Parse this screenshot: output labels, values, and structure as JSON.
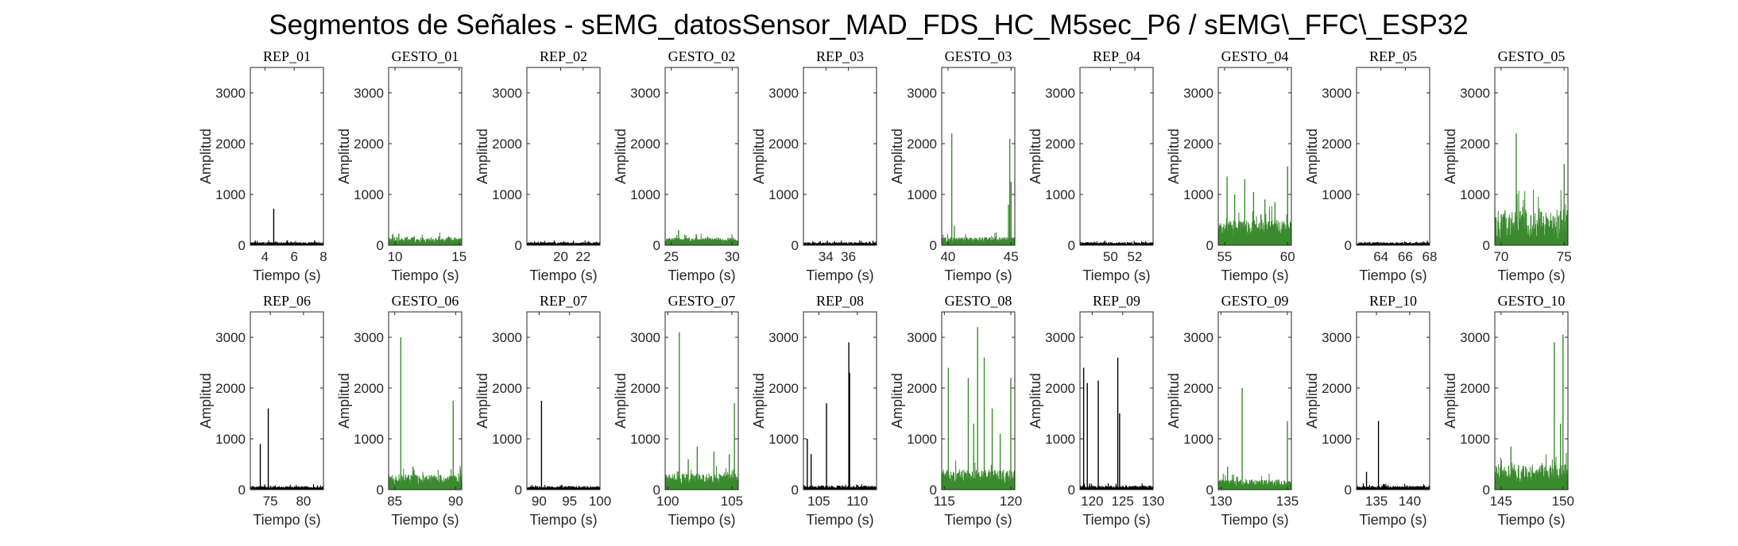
{
  "figure": {
    "title": "Segmentos de Señales - sEMG_datosSensor_MAD_FDS_HC_M5sec_P6 / sEMG\\_FFC\\_ESP32"
  },
  "colors": {
    "rep": "#000000",
    "gesto": "#3a8a2e",
    "axis": "#262626"
  },
  "chart_data": [
    {
      "type": "line",
      "title": "REP_01",
      "xlabel": "Tiempo (s)",
      "ylabel": "Amplitud",
      "xlim": [
        3,
        8
      ],
      "ylim": [
        0,
        3500
      ],
      "xticks": [
        4,
        6,
        8
      ],
      "yticks": [
        0,
        1000,
        2000,
        3000
      ],
      "color": "rep",
      "series": [
        {
          "base": [
            20,
            60
          ],
          "spikes": [
            [
              4.6,
              720
            ]
          ]
        }
      ]
    },
    {
      "type": "line",
      "title": "GESTO_01",
      "xlabel": "Tiempo (s)",
      "ylabel": "Amplitud",
      "xlim": [
        9.5,
        15.2
      ],
      "ylim": [
        0,
        3500
      ],
      "xticks": [
        10,
        15
      ],
      "yticks": [
        0,
        1000,
        2000,
        3000
      ],
      "color": "gesto",
      "series": [
        {
          "base": [
            40,
            160
          ],
          "spikes": [
            [
              10.3,
              230
            ],
            [
              11.5,
              180
            ],
            [
              13.4,
              170
            ]
          ]
        }
      ]
    },
    {
      "type": "line",
      "title": "REP_02",
      "xlabel": "Tiempo (s)",
      "ylabel": "Amplitud",
      "xlim": [
        17,
        23.5
      ],
      "ylim": [
        0,
        3500
      ],
      "xticks": [
        20,
        22
      ],
      "yticks": [
        0,
        1000,
        2000,
        3000
      ],
      "color": "rep",
      "series": [
        {
          "base": [
            20,
            60
          ],
          "spikes": []
        }
      ]
    },
    {
      "type": "line",
      "title": "GESTO_02",
      "xlabel": "Tiempo (s)",
      "ylabel": "Amplitud",
      "xlim": [
        24.5,
        30.5
      ],
      "ylim": [
        0,
        3500
      ],
      "xticks": [
        25,
        30
      ],
      "yticks": [
        0,
        1000,
        2000,
        3000
      ],
      "color": "gesto",
      "series": [
        {
          "base": [
            60,
            150
          ],
          "spikes": [
            [
              25.6,
              300
            ],
            [
              26.2,
              200
            ],
            [
              28.0,
              170
            ]
          ]
        }
      ]
    },
    {
      "type": "line",
      "title": "REP_03",
      "xlabel": "Tiempo (s)",
      "ylabel": "Amplitud",
      "xlim": [
        32,
        38.5
      ],
      "ylim": [
        0,
        3500
      ],
      "xticks": [
        34,
        36
      ],
      "yticks": [
        0,
        1000,
        2000,
        3000
      ],
      "color": "rep",
      "series": [
        {
          "base": [
            20,
            60
          ],
          "spikes": []
        }
      ]
    },
    {
      "type": "line",
      "title": "GESTO_03",
      "xlabel": "Tiempo (s)",
      "ylabel": "Amplitud",
      "xlim": [
        39.5,
        45.3
      ],
      "ylim": [
        0,
        3500
      ],
      "xticks": [
        40,
        45
      ],
      "yticks": [
        0,
        1000,
        2000,
        3000
      ],
      "color": "gesto",
      "series": [
        {
          "base": [
            60,
            160
          ],
          "spikes": [
            [
              40.3,
              2200
            ],
            [
              40.5,
              380
            ],
            [
              44.9,
              2100
            ],
            [
              45.0,
              1250
            ],
            [
              44.8,
              800
            ]
          ]
        }
      ]
    },
    {
      "type": "line",
      "title": "REP_04",
      "xlabel": "Tiempo (s)",
      "ylabel": "Amplitud",
      "xlim": [
        47.5,
        53.5
      ],
      "ylim": [
        0,
        3500
      ],
      "xticks": [
        50,
        52
      ],
      "yticks": [
        0,
        1000,
        2000,
        3000
      ],
      "color": "rep",
      "series": [
        {
          "base": [
            20,
            60
          ],
          "spikes": []
        }
      ]
    },
    {
      "type": "line",
      "title": "GESTO_04",
      "xlabel": "Tiempo (s)",
      "ylabel": "Amplitud",
      "xlim": [
        54.5,
        60.3
      ],
      "ylim": [
        0,
        3500
      ],
      "xticks": [
        55,
        60
      ],
      "yticks": [
        0,
        1000,
        2000,
        3000
      ],
      "color": "gesto",
      "series": [
        {
          "base": [
            150,
            500
          ],
          "spikes": [
            [
              55.2,
              1350
            ],
            [
              55.8,
              1000
            ],
            [
              56.6,
              1300
            ],
            [
              57.3,
              1050
            ],
            [
              58.2,
              900
            ],
            [
              59.0,
              850
            ],
            [
              60.0,
              1550
            ]
          ]
        }
      ]
    },
    {
      "type": "line",
      "title": "REP_05",
      "xlabel": "Tiempo (s)",
      "ylabel": "Amplitud",
      "xlim": [
        62,
        68
      ],
      "ylim": [
        0,
        3500
      ],
      "xticks": [
        64,
        66,
        68
      ],
      "yticks": [
        0,
        1000,
        2000,
        3000
      ],
      "color": "rep",
      "series": [
        {
          "base": [
            20,
            60
          ],
          "spikes": []
        }
      ]
    },
    {
      "type": "line",
      "title": "GESTO_05",
      "xlabel": "Tiempo (s)",
      "ylabel": "Amplitud",
      "xlim": [
        69.5,
        75.3
      ],
      "ylim": [
        0,
        3500
      ],
      "xticks": [
        70,
        75
      ],
      "yticks": [
        0,
        1000,
        2000,
        3000
      ],
      "color": "gesto",
      "series": [
        {
          "base": [
            60,
            700
          ],
          "spikes": [
            [
              71.2,
              2200
            ],
            [
              75.0,
              1600
            ]
          ]
        }
      ]
    },
    {
      "type": "line",
      "title": "REP_06",
      "xlabel": "Tiempo (s)",
      "ylabel": "Amplitud",
      "xlim": [
        72,
        83
      ],
      "ylim": [
        0,
        3500
      ],
      "xticks": [
        75,
        80
      ],
      "yticks": [
        0,
        1000,
        2000,
        3000
      ],
      "color": "rep",
      "series": [
        {
          "base": [
            20,
            70
          ],
          "spikes": [
            [
              74.7,
              1600
            ],
            [
              73.5,
              900
            ]
          ]
        }
      ]
    },
    {
      "type": "line",
      "title": "GESTO_06",
      "xlabel": "Tiempo (s)",
      "ylabel": "Amplitud",
      "xlim": [
        84.5,
        90.5
      ],
      "ylim": [
        0,
        3500
      ],
      "xticks": [
        85,
        90
      ],
      "yticks": [
        0,
        1000,
        2000,
        3000
      ],
      "color": "gesto",
      "series": [
        {
          "base": [
            100,
            300
          ],
          "spikes": [
            [
              85.5,
              3000
            ],
            [
              89.8,
              1750
            ],
            [
              86.5,
              450
            ]
          ]
        }
      ]
    },
    {
      "type": "line",
      "title": "REP_07",
      "xlabel": "Tiempo (s)",
      "ylabel": "Amplitud",
      "xlim": [
        88,
        100
      ],
      "ylim": [
        0,
        3500
      ],
      "xticks": [
        90,
        95,
        100
      ],
      "yticks": [
        0,
        1000,
        2000,
        3000
      ],
      "color": "rep",
      "series": [
        {
          "base": [
            20,
            70
          ],
          "spikes": [
            [
              90.4,
              1750
            ]
          ]
        }
      ]
    },
    {
      "type": "line",
      "title": "GESTO_07",
      "xlabel": "Tiempo (s)",
      "ylabel": "Amplitud",
      "xlim": [
        99.8,
        105.5
      ],
      "ylim": [
        0,
        3500
      ],
      "xticks": [
        100,
        105
      ],
      "yticks": [
        0,
        1000,
        2000,
        3000
      ],
      "color": "gesto",
      "series": [
        {
          "base": [
            100,
            320
          ],
          "spikes": [
            [
              100.9,
              3100
            ],
            [
              102.3,
              850
            ],
            [
              103.6,
              750
            ],
            [
              101.6,
              600
            ],
            [
              105.2,
              1700
            ],
            [
              104.8,
              700
            ]
          ]
        }
      ]
    },
    {
      "type": "line",
      "title": "REP_08",
      "xlabel": "Tiempo (s)",
      "ylabel": "Amplitud",
      "xlim": [
        103,
        112.5
      ],
      "ylim": [
        0,
        3500
      ],
      "xticks": [
        105,
        110
      ],
      "yticks": [
        0,
        1000,
        2000,
        3000
      ],
      "color": "rep",
      "series": [
        {
          "base": [
            20,
            80
          ],
          "spikes": [
            [
              103.5,
              1000
            ],
            [
              104.0,
              700
            ],
            [
              106.0,
              1700
            ],
            [
              108.9,
              2900
            ],
            [
              109.0,
              2300
            ]
          ]
        }
      ]
    },
    {
      "type": "line",
      "title": "GESTO_08",
      "xlabel": "Tiempo (s)",
      "ylabel": "Amplitud",
      "xlim": [
        114.8,
        120.3
      ],
      "ylim": [
        0,
        3500
      ],
      "xticks": [
        115,
        120
      ],
      "yticks": [
        0,
        1000,
        2000,
        3000
      ],
      "color": "gesto",
      "series": [
        {
          "base": [
            100,
            400
          ],
          "spikes": [
            [
              115.3,
              2400
            ],
            [
              116.8,
              2200
            ],
            [
              117.5,
              3200
            ],
            [
              117.2,
              1300
            ],
            [
              118.0,
              2600
            ],
            [
              118.6,
              1600
            ],
            [
              119.2,
              1100
            ],
            [
              120.0,
              2200
            ]
          ]
        }
      ]
    },
    {
      "type": "line",
      "title": "REP_09",
      "xlabel": "Tiempo (s)",
      "ylabel": "Amplitud",
      "xlim": [
        118,
        130
      ],
      "ylim": [
        0,
        3500
      ],
      "xticks": [
        120,
        125,
        130
      ],
      "yticks": [
        0,
        1000,
        2000,
        3000
      ],
      "color": "rep",
      "series": [
        {
          "base": [
            20,
            80
          ],
          "spikes": [
            [
              118.6,
              2400
            ],
            [
              119.2,
              2100
            ],
            [
              121.0,
              2150
            ],
            [
              124.2,
              2600
            ],
            [
              124.5,
              1500
            ]
          ]
        }
      ]
    },
    {
      "type": "line",
      "title": "GESTO_09",
      "xlabel": "Tiempo (s)",
      "ylabel": "Amplitud",
      "xlim": [
        129.8,
        135.3
      ],
      "ylim": [
        0,
        3500
      ],
      "xticks": [
        130,
        135
      ],
      "yticks": [
        0,
        1000,
        2000,
        3000
      ],
      "color": "gesto",
      "series": [
        {
          "base": [
            60,
            200
          ],
          "spikes": [
            [
              131.6,
              2000
            ],
            [
              130.5,
              450
            ],
            [
              135.0,
              1350
            ]
          ]
        }
      ]
    },
    {
      "type": "line",
      "title": "REP_10",
      "xlabel": "Tiempo (s)",
      "ylabel": "Amplitud",
      "xlim": [
        132,
        143
      ],
      "ylim": [
        0,
        3500
      ],
      "xticks": [
        135,
        140
      ],
      "yticks": [
        0,
        1000,
        2000,
        3000
      ],
      "color": "rep",
      "series": [
        {
          "base": [
            20,
            80
          ],
          "spikes": [
            [
              135.3,
              1350
            ],
            [
              133.5,
              350
            ]
          ]
        }
      ]
    },
    {
      "type": "line",
      "title": "GESTO_10",
      "xlabel": "Tiempo (s)",
      "ylabel": "Amplitud",
      "xlim": [
        144.5,
        150.4
      ],
      "ylim": [
        0,
        3500
      ],
      "xticks": [
        145,
        150
      ],
      "yticks": [
        0,
        1000,
        2000,
        3000
      ],
      "color": "gesto",
      "series": [
        {
          "base": [
            120,
            500
          ],
          "spikes": [
            [
              145.8,
              850
            ],
            [
              149.3,
              2900
            ],
            [
              150.0,
              3050
            ],
            [
              149.8,
              1300
            ]
          ]
        }
      ]
    }
  ]
}
